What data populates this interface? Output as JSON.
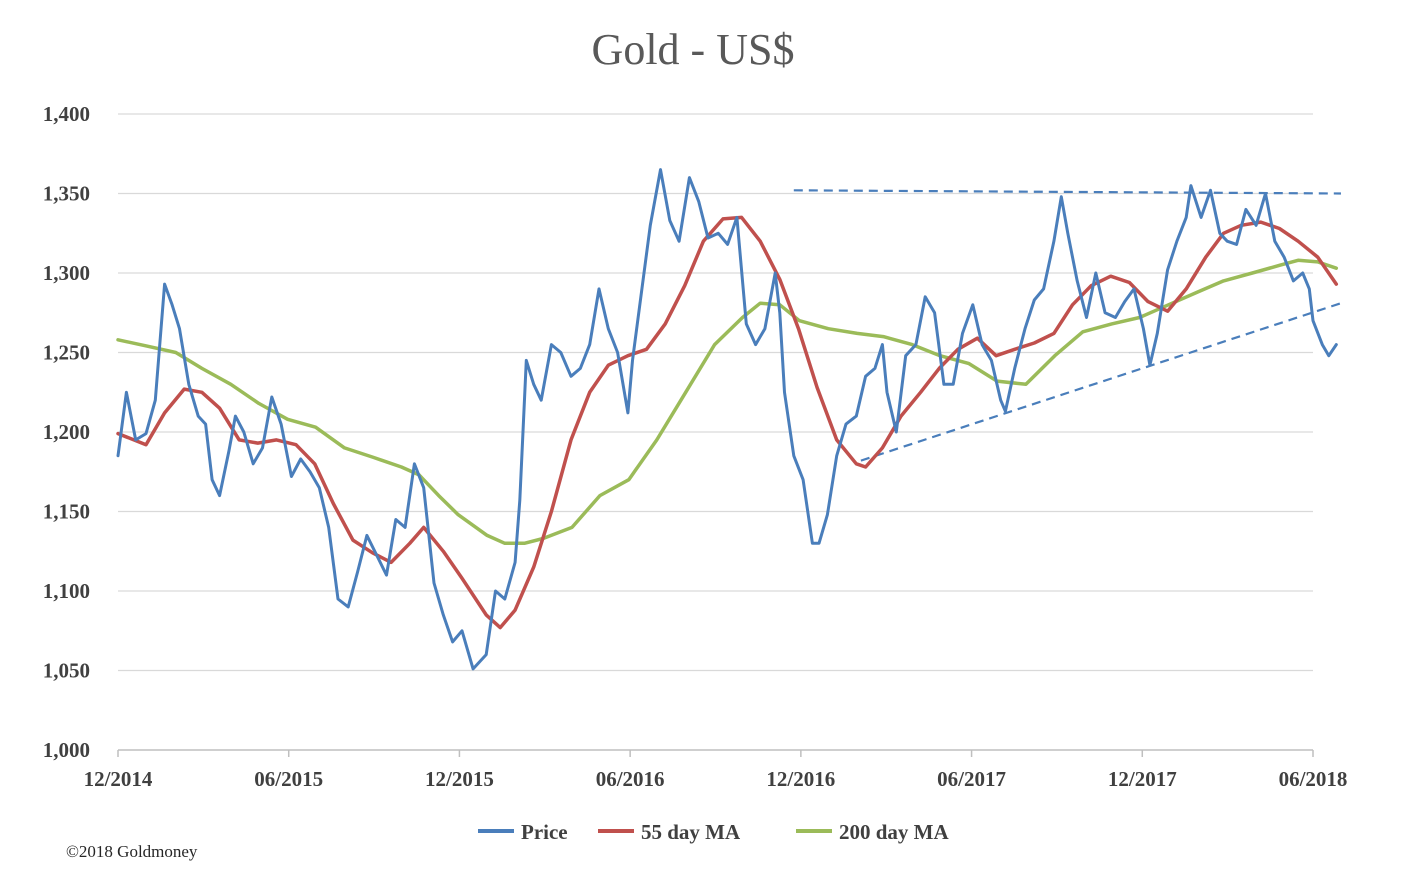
{
  "chart_data": {
    "type": "line",
    "title": "Gold - US$",
    "xlabel": "",
    "ylabel": "",
    "ylim": [
      1000,
      1400
    ],
    "yticks": [
      1000,
      1050,
      1100,
      1150,
      1200,
      1250,
      1300,
      1350,
      1400
    ],
    "ytick_labels": [
      "1,000",
      "1,050",
      "1,100",
      "1,150",
      "1,200",
      "1,250",
      "1,300",
      "1,350",
      "1,400"
    ],
    "xlim": [
      "2014-12-01",
      "2018-06-05"
    ],
    "xticks": [
      "12/2014",
      "06/2015",
      "12/2015",
      "06/2016",
      "12/2016",
      "06/2017",
      "12/2017",
      "06/2018"
    ],
    "grid": "horizontal",
    "legend_position": "bottom",
    "series": [
      {
        "name": "Price",
        "color": "#4a7ebb",
        "points": [
          [
            "2014-12-01",
            1185
          ],
          [
            "2014-12-10",
            1225
          ],
          [
            "2014-12-20",
            1195
          ],
          [
            "2014-12-31",
            1199
          ],
          [
            "2015-01-10",
            1220
          ],
          [
            "2015-01-20",
            1293
          ],
          [
            "2015-01-28",
            1280
          ],
          [
            "2015-02-05",
            1265
          ],
          [
            "2015-02-15",
            1230
          ],
          [
            "2015-02-25",
            1210
          ],
          [
            "2015-03-05",
            1205
          ],
          [
            "2015-03-12",
            1170
          ],
          [
            "2015-03-20",
            1160
          ],
          [
            "2015-03-30",
            1188
          ],
          [
            "2015-04-06",
            1210
          ],
          [
            "2015-04-15",
            1200
          ],
          [
            "2015-04-25",
            1180
          ],
          [
            "2015-05-05",
            1190
          ],
          [
            "2015-05-15",
            1222
          ],
          [
            "2015-05-25",
            1205
          ],
          [
            "2015-06-05",
            1172
          ],
          [
            "2015-06-15",
            1183
          ],
          [
            "2015-06-25",
            1175
          ],
          [
            "2015-07-05",
            1165
          ],
          [
            "2015-07-15",
            1140
          ],
          [
            "2015-07-25",
            1095
          ],
          [
            "2015-08-05",
            1090
          ],
          [
            "2015-08-15",
            1112
          ],
          [
            "2015-08-25",
            1135
          ],
          [
            "2015-09-05",
            1122
          ],
          [
            "2015-09-15",
            1110
          ],
          [
            "2015-09-25",
            1145
          ],
          [
            "2015-10-05",
            1140
          ],
          [
            "2015-10-15",
            1180
          ],
          [
            "2015-10-25",
            1165
          ],
          [
            "2015-11-05",
            1105
          ],
          [
            "2015-11-15",
            1085
          ],
          [
            "2015-11-25",
            1068
          ],
          [
            "2015-12-05",
            1075
          ],
          [
            "2015-12-17",
            1051
          ],
          [
            "2015-12-31",
            1060
          ],
          [
            "2016-01-10",
            1100
          ],
          [
            "2016-01-20",
            1095
          ],
          [
            "2016-01-31",
            1118
          ],
          [
            "2016-02-05",
            1157
          ],
          [
            "2016-02-12",
            1245
          ],
          [
            "2016-02-20",
            1230
          ],
          [
            "2016-02-28",
            1220
          ],
          [
            "2016-03-10",
            1255
          ],
          [
            "2016-03-20",
            1250
          ],
          [
            "2016-03-31",
            1235
          ],
          [
            "2016-04-10",
            1240
          ],
          [
            "2016-04-20",
            1255
          ],
          [
            "2016-04-30",
            1290
          ],
          [
            "2016-05-10",
            1265
          ],
          [
            "2016-05-20",
            1250
          ],
          [
            "2016-05-31",
            1212
          ],
          [
            "2016-06-05",
            1245
          ],
          [
            "2016-06-15",
            1290
          ],
          [
            "2016-06-24",
            1330
          ],
          [
            "2016-07-05",
            1365
          ],
          [
            "2016-07-15",
            1333
          ],
          [
            "2016-07-25",
            1320
          ],
          [
            "2016-08-05",
            1360
          ],
          [
            "2016-08-15",
            1345
          ],
          [
            "2016-08-25",
            1322
          ],
          [
            "2016-09-05",
            1325
          ],
          [
            "2016-09-15",
            1318
          ],
          [
            "2016-09-25",
            1335
          ],
          [
            "2016-10-05",
            1268
          ],
          [
            "2016-10-15",
            1255
          ],
          [
            "2016-10-25",
            1265
          ],
          [
            "2016-11-05",
            1300
          ],
          [
            "2016-11-10",
            1275
          ],
          [
            "2016-11-15",
            1225
          ],
          [
            "2016-11-25",
            1185
          ],
          [
            "2016-12-05",
            1170
          ],
          [
            "2016-12-15",
            1130
          ],
          [
            "2016-12-22",
            1130
          ],
          [
            "2016-12-31",
            1148
          ],
          [
            "2017-01-10",
            1185
          ],
          [
            "2017-01-20",
            1205
          ],
          [
            "2017-01-31",
            1210
          ],
          [
            "2017-02-10",
            1235
          ],
          [
            "2017-02-20",
            1240
          ],
          [
            "2017-02-28",
            1255
          ],
          [
            "2017-03-05",
            1225
          ],
          [
            "2017-03-15",
            1200
          ],
          [
            "2017-03-25",
            1248
          ],
          [
            "2017-04-05",
            1255
          ],
          [
            "2017-04-15",
            1285
          ],
          [
            "2017-04-25",
            1275
          ],
          [
            "2017-05-05",
            1230
          ],
          [
            "2017-05-15",
            1230
          ],
          [
            "2017-05-25",
            1262
          ],
          [
            "2017-06-05",
            1280
          ],
          [
            "2017-06-15",
            1255
          ],
          [
            "2017-06-25",
            1245
          ],
          [
            "2017-07-05",
            1220
          ],
          [
            "2017-07-10",
            1213
          ],
          [
            "2017-07-20",
            1240
          ],
          [
            "2017-07-31",
            1265
          ],
          [
            "2017-08-10",
            1283
          ],
          [
            "2017-08-20",
            1290
          ],
          [
            "2017-08-31",
            1320
          ],
          [
            "2017-09-08",
            1348
          ],
          [
            "2017-09-15",
            1325
          ],
          [
            "2017-09-25",
            1295
          ],
          [
            "2017-10-05",
            1272
          ],
          [
            "2017-10-15",
            1300
          ],
          [
            "2017-10-25",
            1275
          ],
          [
            "2017-11-05",
            1272
          ],
          [
            "2017-11-15",
            1282
          ],
          [
            "2017-11-25",
            1290
          ],
          [
            "2017-12-05",
            1265
          ],
          [
            "2017-12-12",
            1242
          ],
          [
            "2017-12-20",
            1262
          ],
          [
            "2017-12-31",
            1302
          ],
          [
            "2018-01-10",
            1320
          ],
          [
            "2018-01-20",
            1335
          ],
          [
            "2018-01-25",
            1355
          ],
          [
            "2018-02-05",
            1335
          ],
          [
            "2018-02-15",
            1352
          ],
          [
            "2018-02-25",
            1325
          ],
          [
            "2018-03-05",
            1320
          ],
          [
            "2018-03-15",
            1318
          ],
          [
            "2018-03-25",
            1340
          ],
          [
            "2018-04-05",
            1330
          ],
          [
            "2018-04-15",
            1350
          ],
          [
            "2018-04-25",
            1320
          ],
          [
            "2018-05-05",
            1310
          ],
          [
            "2018-05-15",
            1295
          ],
          [
            "2018-05-25",
            1300
          ],
          [
            "2018-06-01",
            1290
          ],
          [
            "2018-06-05",
            1270
          ],
          [
            "2018-06-15",
            1255
          ],
          [
            "2018-06-22",
            1248
          ],
          [
            "2018-06-30",
            1255
          ]
        ]
      },
      {
        "name": "55 day MA",
        "color": "#c0504d",
        "points": [
          [
            "2014-12-01",
            1199
          ],
          [
            "2014-12-31",
            1192
          ],
          [
            "2015-01-20",
            1212
          ],
          [
            "2015-02-10",
            1227
          ],
          [
            "2015-03-01",
            1225
          ],
          [
            "2015-03-20",
            1215
          ],
          [
            "2015-04-10",
            1195
          ],
          [
            "2015-04-30",
            1193
          ],
          [
            "2015-05-20",
            1195
          ],
          [
            "2015-06-10",
            1192
          ],
          [
            "2015-06-30",
            1180
          ],
          [
            "2015-07-20",
            1155
          ],
          [
            "2015-08-10",
            1132
          ],
          [
            "2015-08-31",
            1124
          ],
          [
            "2015-09-20",
            1118
          ],
          [
            "2015-10-10",
            1130
          ],
          [
            "2015-10-25",
            1140
          ],
          [
            "2015-11-15",
            1125
          ],
          [
            "2015-12-05",
            1108
          ],
          [
            "2015-12-31",
            1085
          ],
          [
            "2016-01-15",
            1077
          ],
          [
            "2016-01-31",
            1088
          ],
          [
            "2016-02-20",
            1115
          ],
          [
            "2016-03-10",
            1150
          ],
          [
            "2016-03-31",
            1195
          ],
          [
            "2016-04-20",
            1225
          ],
          [
            "2016-05-10",
            1242
          ],
          [
            "2016-05-31",
            1248
          ],
          [
            "2016-06-20",
            1252
          ],
          [
            "2016-07-10",
            1268
          ],
          [
            "2016-07-31",
            1292
          ],
          [
            "2016-08-20",
            1320
          ],
          [
            "2016-09-10",
            1334
          ],
          [
            "2016-09-30",
            1335
          ],
          [
            "2016-10-20",
            1320
          ],
          [
            "2016-11-10",
            1296
          ],
          [
            "2016-11-30",
            1265
          ],
          [
            "2016-12-20",
            1228
          ],
          [
            "2017-01-10",
            1195
          ],
          [
            "2017-01-31",
            1180
          ],
          [
            "2017-02-10",
            1178
          ],
          [
            "2017-02-28",
            1190
          ],
          [
            "2017-03-20",
            1210
          ],
          [
            "2017-04-10",
            1225
          ],
          [
            "2017-04-30",
            1240
          ],
          [
            "2017-05-20",
            1252
          ],
          [
            "2017-06-10",
            1259
          ],
          [
            "2017-06-30",
            1248
          ],
          [
            "2017-07-20",
            1252
          ],
          [
            "2017-08-10",
            1256
          ],
          [
            "2017-08-31",
            1262
          ],
          [
            "2017-09-20",
            1280
          ],
          [
            "2017-10-10",
            1292
          ],
          [
            "2017-10-31",
            1298
          ],
          [
            "2017-11-20",
            1294
          ],
          [
            "2017-12-10",
            1282
          ],
          [
            "2017-12-31",
            1276
          ],
          [
            "2018-01-20",
            1290
          ],
          [
            "2018-02-10",
            1310
          ],
          [
            "2018-03-01",
            1325
          ],
          [
            "2018-03-20",
            1330
          ],
          [
            "2018-04-10",
            1332
          ],
          [
            "2018-04-30",
            1328
          ],
          [
            "2018-05-20",
            1320
          ],
          [
            "2018-06-10",
            1310
          ],
          [
            "2018-06-30",
            1293
          ]
        ]
      },
      {
        "name": "200 day MA",
        "color": "#9bbb59",
        "points": [
          [
            "2014-12-01",
            1258
          ],
          [
            "2015-01-01",
            1254
          ],
          [
            "2015-02-01",
            1250
          ],
          [
            "2015-03-01",
            1240
          ],
          [
            "2015-04-01",
            1230
          ],
          [
            "2015-05-01",
            1218
          ],
          [
            "2015-06-01",
            1208
          ],
          [
            "2015-07-01",
            1203
          ],
          [
            "2015-08-01",
            1190
          ],
          [
            "2015-09-01",
            1184
          ],
          [
            "2015-10-01",
            1178
          ],
          [
            "2015-10-20",
            1173
          ],
          [
            "2015-11-10",
            1160
          ],
          [
            "2015-12-01",
            1148
          ],
          [
            "2016-01-01",
            1135
          ],
          [
            "2016-01-20",
            1130
          ],
          [
            "2016-02-10",
            1130
          ],
          [
            "2016-03-01",
            1133
          ],
          [
            "2016-04-01",
            1140
          ],
          [
            "2016-05-01",
            1160
          ],
          [
            "2016-06-01",
            1170
          ],
          [
            "2016-07-01",
            1195
          ],
          [
            "2016-08-01",
            1225
          ],
          [
            "2016-09-01",
            1255
          ],
          [
            "2016-10-01",
            1272
          ],
          [
            "2016-10-20",
            1281
          ],
          [
            "2016-11-10",
            1280
          ],
          [
            "2016-12-01",
            1270
          ],
          [
            "2017-01-01",
            1265
          ],
          [
            "2017-02-01",
            1262
          ],
          [
            "2017-03-01",
            1260
          ],
          [
            "2017-04-01",
            1255
          ],
          [
            "2017-05-01",
            1248
          ],
          [
            "2017-06-01",
            1243
          ],
          [
            "2017-07-01",
            1232
          ],
          [
            "2017-08-01",
            1230
          ],
          [
            "2017-09-01",
            1248
          ],
          [
            "2017-10-01",
            1263
          ],
          [
            "2017-11-01",
            1268
          ],
          [
            "2017-12-01",
            1272
          ],
          [
            "2018-01-01",
            1280
          ],
          [
            "2018-02-01",
            1288
          ],
          [
            "2018-03-01",
            1295
          ],
          [
            "2018-04-01",
            1300
          ],
          [
            "2018-05-01",
            1305
          ],
          [
            "2018-05-20",
            1308
          ],
          [
            "2018-06-10",
            1307
          ],
          [
            "2018-06-30",
            1303
          ]
        ]
      }
    ],
    "trendlines": [
      {
        "style": "dashed",
        "color": "#4a7ebb",
        "from": [
          "2016-11-25",
          1352
        ],
        "to": [
          "2018-07-05",
          1350
        ]
      },
      {
        "style": "dashed",
        "color": "#4a7ebb",
        "from": [
          "2017-02-05",
          1182
        ],
        "to": [
          "2018-07-05",
          1281
        ]
      }
    ]
  },
  "copyright": "©2018 Goldmoney"
}
